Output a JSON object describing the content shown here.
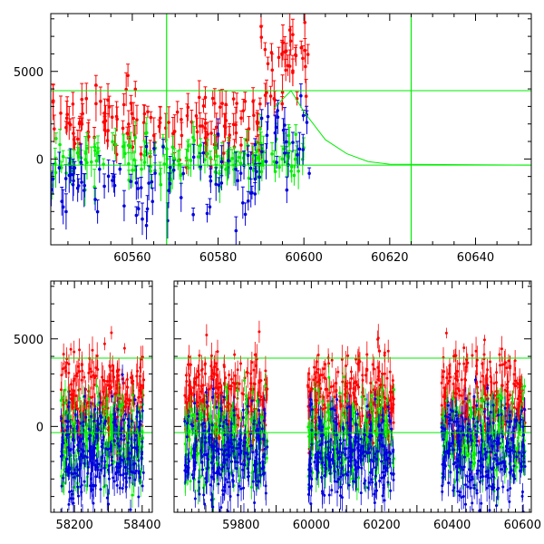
{
  "colors": {
    "red": "#ff0000",
    "green": "#00ee00",
    "blue": "#0000dd",
    "model": "#00ee00",
    "frame": "#000000"
  },
  "chart_data": [
    {
      "type": "scatter",
      "title": "",
      "xlabel": "",
      "ylabel": "",
      "xlim": [
        60541,
        60653
      ],
      "ylim": [
        -4900,
        8300
      ],
      "xticks": [
        60560,
        60580,
        60600,
        60620,
        60640
      ],
      "yticks": [
        0,
        5000
      ],
      "hlines": [
        3900,
        -350
      ],
      "vlines": [
        60568,
        60625
      ],
      "model_curve": {
        "description_points": [
          [
            60593,
            2900
          ],
          [
            60597,
            3900
          ],
          [
            60600,
            2700
          ],
          [
            60605,
            1100
          ],
          [
            60610,
            300
          ],
          [
            60615,
            -150
          ],
          [
            60620,
            -300
          ],
          [
            60653,
            -350
          ]
        ]
      },
      "series": [
        {
          "color": "red",
          "x_range": [
            60541,
            60602
          ],
          "y_center": 2000,
          "y_spread": 2200,
          "n": 170
        },
        {
          "color": "green",
          "x_range": [
            60541,
            60600
          ],
          "y_center": 0,
          "y_spread": 1400,
          "n": 150
        },
        {
          "color": "blue",
          "x_range": [
            60541,
            60602
          ],
          "y_center": -1500,
          "y_spread": 2400,
          "n": 110
        }
      ]
    },
    {
      "type": "scatter",
      "title": "",
      "xlabel": "",
      "ylabel": "",
      "ylim": [
        -4900,
        8300
      ],
      "yticks": [
        0,
        5000
      ],
      "hlines": [
        3900,
        -350
      ],
      "segments": [
        {
          "xlim": [
            58130,
            58430
          ],
          "xticks": [
            58200,
            58400
          ],
          "data_range": [
            58160,
            58405
          ]
        },
        {
          "xlim": [
            59610,
            60625
          ],
          "xticks": [
            59800,
            60000,
            60200,
            60400,
            60600
          ],
          "data_ranges": [
            [
              59640,
              59875
            ],
            [
              59990,
              60235
            ],
            [
              60370,
              60608
            ]
          ]
        }
      ],
      "series": [
        {
          "color": "red",
          "y_center": 1500,
          "y_spread": 2600
        },
        {
          "color": "green",
          "y_center": -700,
          "y_spread": 2600
        },
        {
          "color": "blue",
          "y_center": -1500,
          "y_spread": 2900
        }
      ]
    }
  ]
}
